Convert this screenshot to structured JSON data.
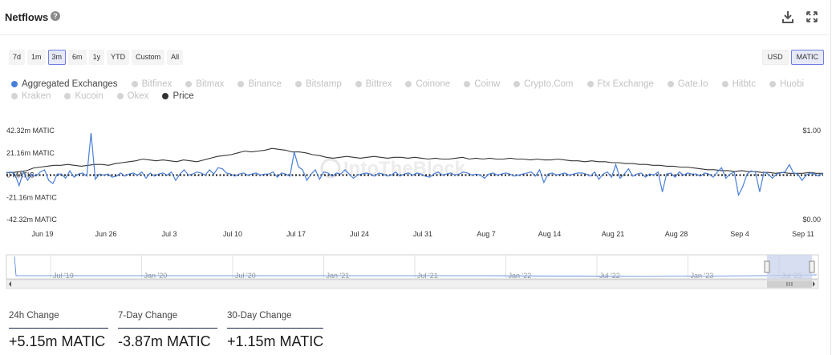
{
  "header": {
    "title": "Netflows",
    "help_glyph": "?"
  },
  "range_buttons": [
    "7d",
    "1m",
    "3m",
    "6m",
    "1y",
    "YTD",
    "Custom",
    "All"
  ],
  "range_active": "3m",
  "unit_buttons": [
    "USD",
    "MATIC"
  ],
  "unit_active": "MATIC",
  "legend": [
    {
      "label": "Aggregated Exchanges",
      "on": true,
      "color": "#4a7fd8"
    },
    {
      "label": "Bitfinex",
      "on": false
    },
    {
      "label": "Bitmax",
      "on": false
    },
    {
      "label": "Binance",
      "on": false
    },
    {
      "label": "Bitstamp",
      "on": false
    },
    {
      "label": "Bittrex",
      "on": false
    },
    {
      "label": "Coinone",
      "on": false
    },
    {
      "label": "Coinw",
      "on": false
    },
    {
      "label": "Crypto.Com",
      "on": false
    },
    {
      "label": "Ftx Exchange",
      "on": false
    },
    {
      "label": "Gate.Io",
      "on": false
    },
    {
      "label": "Hitbtc",
      "on": false
    },
    {
      "label": "Huobi",
      "on": false
    },
    {
      "label": "Kraken",
      "on": false
    },
    {
      "label": "Kucoin",
      "on": false
    },
    {
      "label": "Okex",
      "on": false
    },
    {
      "label": "Price",
      "on": true,
      "color": "#333333"
    }
  ],
  "watermark": "IntoTheBlock",
  "chart_data": {
    "type": "line",
    "x_start": "Jun 14",
    "x_end": "Sep 13",
    "x_tick_labels": [
      "Jun 19",
      "Jun 26",
      "Jul 3",
      "Jul 10",
      "Jul 17",
      "Jul 24",
      "Jul 31",
      "Aug 7",
      "Aug 14",
      "Aug 21",
      "Aug 28",
      "Sep 4",
      "Sep 11"
    ],
    "y_left_ticks": [
      "42.32m MATIC",
      "21.16m MATIC",
      "0 MATIC",
      "-21.16m MATIC",
      "-42.32m MATIC"
    ],
    "y_left_range": [
      -42.32,
      42.32
    ],
    "y_right_ticks": [
      "$1.00",
      "$0.00"
    ],
    "y_right_range": [
      0,
      1.0
    ],
    "series": [
      {
        "name": "Aggregated Exchanges",
        "axis": "left",
        "unit": "m MATIC",
        "values": [
          2,
          3,
          1,
          -10,
          3,
          -5,
          1,
          -1,
          3,
          5,
          -5,
          -8,
          1,
          1,
          -3,
          4,
          -2,
          1,
          2,
          -1,
          40,
          -4,
          1,
          0,
          1,
          -2,
          -1,
          2,
          -1,
          1,
          2,
          0,
          3,
          -3,
          2,
          -1,
          1,
          2,
          0,
          3,
          -5,
          1,
          5,
          0,
          1,
          3,
          2,
          0,
          5,
          1,
          7,
          6,
          2,
          1,
          -1,
          1,
          2,
          0,
          1,
          2,
          0,
          1,
          1,
          3,
          -2,
          2,
          1,
          -1,
          22,
          8,
          5,
          -5,
          1,
          5,
          -4,
          3,
          2,
          -1,
          2,
          1,
          5,
          1,
          -3,
          0,
          1,
          2,
          1,
          -1,
          2,
          1,
          -1,
          0,
          3,
          -1,
          1,
          2,
          0,
          2,
          1,
          -1,
          -2,
          1,
          3,
          0,
          1,
          2,
          0,
          1,
          3,
          2,
          0,
          1,
          0,
          -3,
          1,
          2,
          0,
          1,
          2,
          1,
          -1,
          0,
          1,
          2,
          3,
          -1,
          5,
          -7,
          1,
          2,
          0,
          1,
          2,
          0,
          1,
          2,
          2,
          1,
          -1,
          3,
          -4,
          1,
          3,
          -2,
          10,
          -3,
          1,
          6,
          -1,
          1,
          2,
          -2,
          1,
          0,
          3,
          -16,
          1,
          2,
          -2,
          3,
          0,
          2,
          1,
          1,
          -1,
          2,
          1,
          -2,
          3,
          7,
          -3,
          1,
          3,
          -19,
          -11,
          1,
          4,
          3,
          -16,
          3,
          1,
          -3,
          1,
          2,
          3,
          10,
          2,
          1,
          -5,
          0,
          2,
          1,
          -1,
          2
        ],
        "color": "#4a7fd8"
      },
      {
        "name": "Price",
        "axis": "right",
        "unit": "$",
        "values": [
          0.53,
          0.53,
          0.54,
          0.55,
          0.58,
          0.59,
          0.6,
          0.61,
          0.61,
          0.62,
          0.61,
          0.6,
          0.61,
          0.62,
          0.62,
          0.61,
          0.63,
          0.64,
          0.65,
          0.66,
          0.68,
          0.67,
          0.66,
          0.67,
          0.66,
          0.65,
          0.67,
          0.66,
          0.65,
          0.67,
          0.69,
          0.71,
          0.72,
          0.73,
          0.75,
          0.77,
          0.76,
          0.77,
          0.78,
          0.8,
          0.79,
          0.78,
          0.76,
          0.76,
          0.75,
          0.73,
          0.72,
          0.7,
          0.69,
          0.7,
          0.71,
          0.7,
          0.69,
          0.7,
          0.71,
          0.7,
          0.69,
          0.7,
          0.7,
          0.69,
          0.7,
          0.69,
          0.68,
          0.69,
          0.68,
          0.68,
          0.69,
          0.7,
          0.68,
          0.69,
          0.68,
          0.69,
          0.68,
          0.68,
          0.69,
          0.68,
          0.68,
          0.67,
          0.68,
          0.67,
          0.67,
          0.68,
          0.67,
          0.66,
          0.66,
          0.65,
          0.66,
          0.65,
          0.65,
          0.64,
          0.64,
          0.63,
          0.63,
          0.62,
          0.62,
          0.61,
          0.61,
          0.6,
          0.6,
          0.59,
          0.59,
          0.58,
          0.57,
          0.56,
          0.56,
          0.55,
          0.55,
          0.54,
          0.55,
          0.54,
          0.54,
          0.53,
          0.53,
          0.52,
          0.53,
          0.52,
          0.52,
          0.52,
          0.53,
          0.52,
          0.52
        ],
        "color": "#333333"
      }
    ]
  },
  "navigator": {
    "labels": [
      "Jul '19",
      "Jan '20",
      "Jul '20",
      "Jan '21",
      "Jul '21",
      "Jan '22",
      "Jul '22",
      "Jan '23",
      "Jul '23"
    ]
  },
  "stats": [
    {
      "label": "24h Change",
      "value": "+5.15m MATIC"
    },
    {
      "label": "7-Day Change",
      "value": "-3.87m MATIC"
    },
    {
      "label": "30-Day Change",
      "value": "+1.15m MATIC"
    }
  ]
}
